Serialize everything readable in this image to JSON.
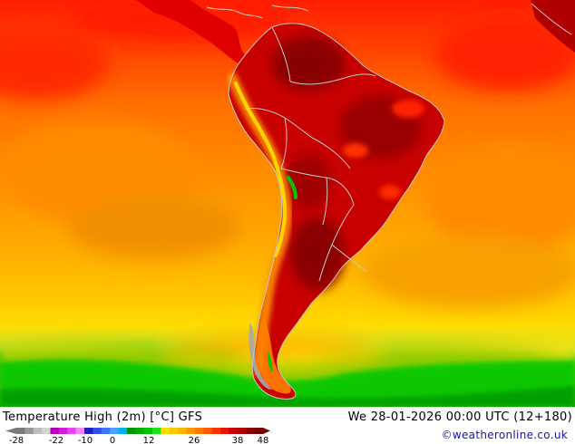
{
  "map": {
    "title": "Temperature High (2m) [°C] GFS",
    "valid_time": "We 28-01-2026 00:00 UTC (12+180)",
    "credit": "©weatheronline.co.uk",
    "region": "South America",
    "colorbar": {
      "tick_labels": [
        "-28",
        "-22",
        "-10",
        "0",
        "12",
        "26",
        "38",
        "48"
      ],
      "colors": [
        "#7a7a7a",
        "#9a9a9a",
        "#bdbdbd",
        "#d4d4d4",
        "#b400b4",
        "#d21edc",
        "#e646f0",
        "#fa82ff",
        "#1e1ec8",
        "#3250e6",
        "#3c78ff",
        "#50a0ff",
        "#00b4f0",
        "#009600",
        "#00aa00",
        "#00c800",
        "#1ee11e",
        "#ffdc00",
        "#ffc800",
        "#ffb400",
        "#ff9600",
        "#ff7800",
        "#ff5a00",
        "#fa3200",
        "#e61400",
        "#c80000",
        "#aa0000",
        "#8c0000",
        "#6e0000"
      ]
    },
    "colors": {
      "ocean_warm": "#f0a020",
      "ocean_hot": "#ff6a00",
      "very_hot": "#ff1a00",
      "land_hot": "#c00000",
      "land_extreme": "#8a0000",
      "andes_cool": "#ffd400",
      "cold_south": "#00c800",
      "border_line": "#c8c8c8"
    }
  }
}
